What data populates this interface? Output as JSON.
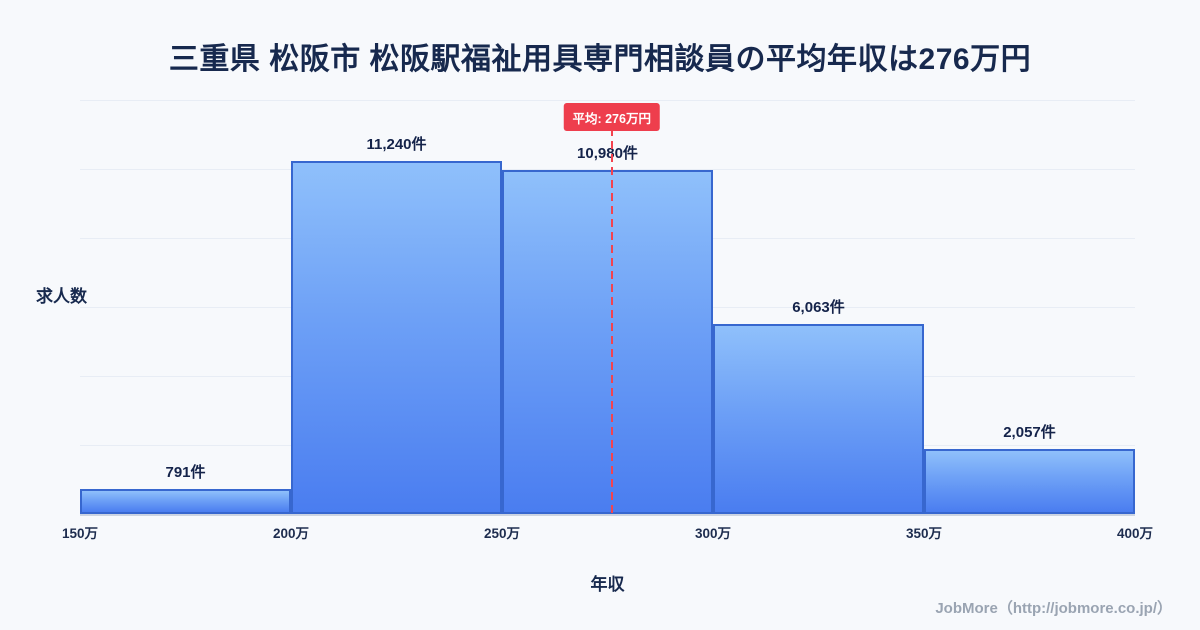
{
  "page": {
    "title": "三重県 松阪市 松阪駅福祉用具専門相談員の平均年収は276万円",
    "footer": "JobMore（http://jobmore.co.jp/）"
  },
  "chart_data": {
    "type": "bar",
    "title": "三重県 松阪市 松阪駅福祉用具専門相談員の平均年収は276万円",
    "xlabel": "年収",
    "ylabel": "求人数",
    "categories": [
      "150万-200万",
      "200万-250万",
      "250万-300万",
      "300万-350万",
      "350万-400万"
    ],
    "x_ticks": [
      "150万",
      "200万",
      "250万",
      "300万",
      "350万",
      "400万"
    ],
    "values": [
      791,
      11240,
      10980,
      6063,
      2057
    ],
    "value_labels": [
      "791件",
      "11,240件",
      "10,980件",
      "6,063件",
      "2,057件"
    ],
    "ylim": [
      0,
      13200
    ],
    "grid": true,
    "legend": "none",
    "average": {
      "value": 276,
      "label": "平均: 276万円",
      "x_range": [
        150,
        400
      ]
    },
    "colors": {
      "bar_top": "#8fc0fb",
      "bar_bottom": "#4a7df0",
      "bar_border": "#3767cf",
      "average_line": "#f4434e",
      "average_badge_bg": "#ee3e4d",
      "average_badge_text": "#ffffff",
      "title_text": "#17294e",
      "background": "#f7f9fc"
    }
  }
}
